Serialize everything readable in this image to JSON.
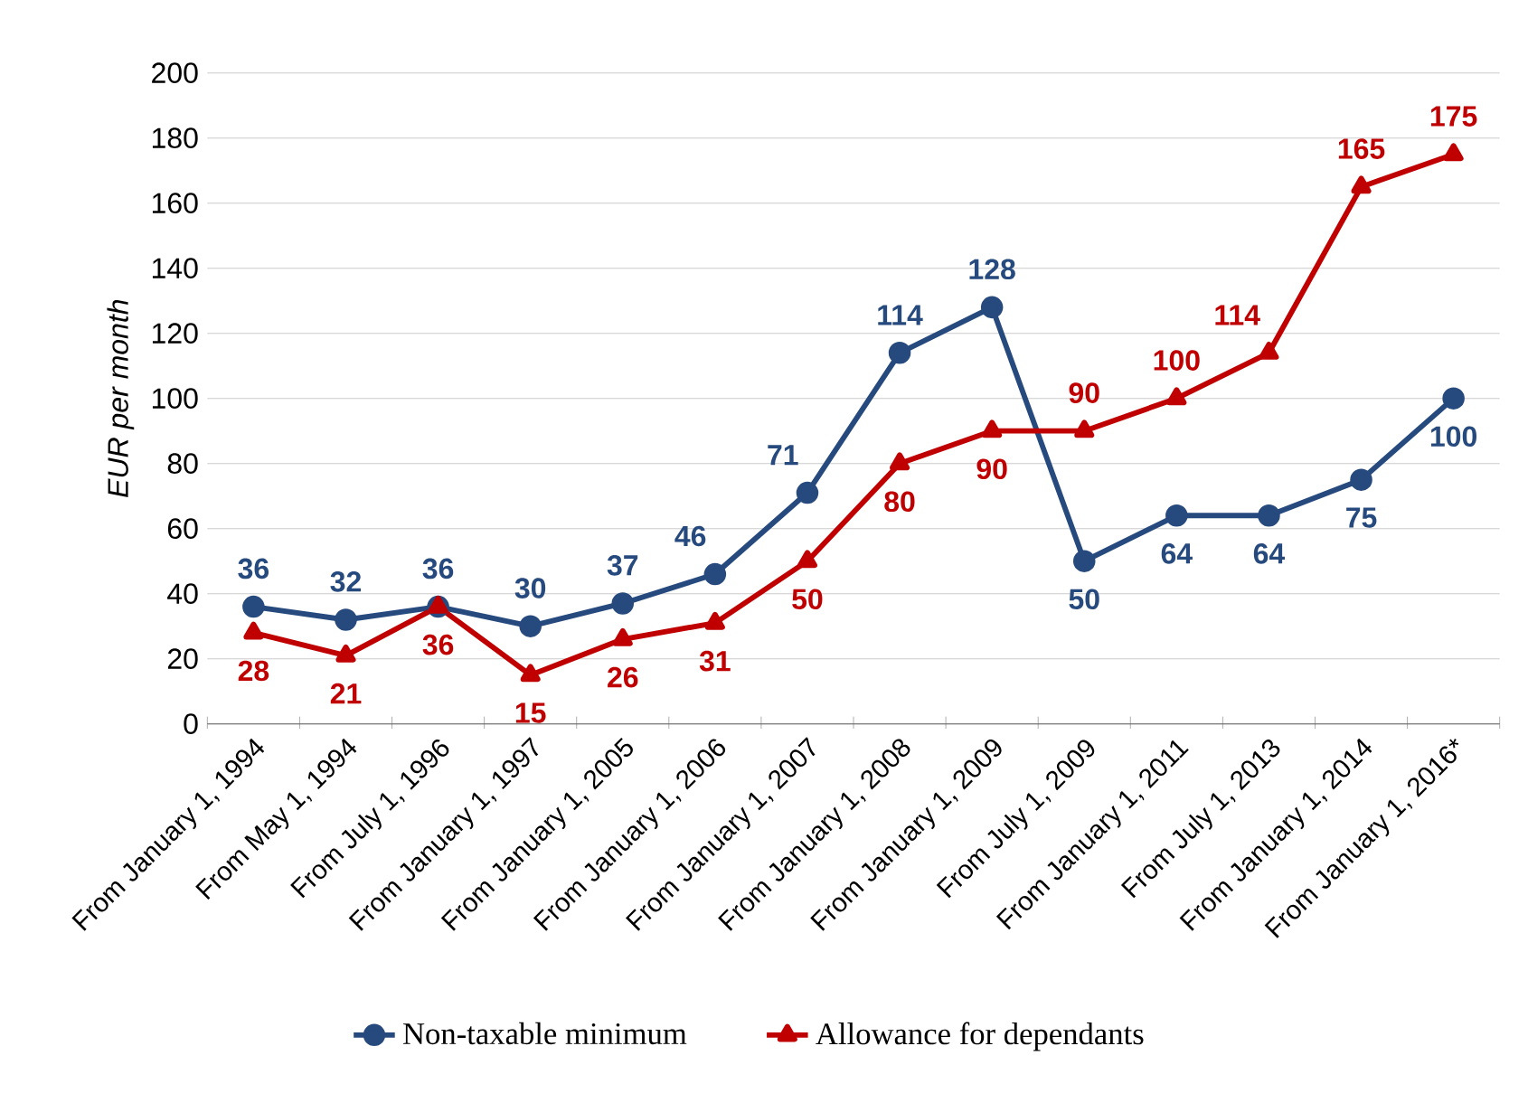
{
  "chart_data": {
    "type": "line",
    "ylabel": "EUR per month",
    "categories": [
      "From January 1, 1994",
      "From May 1, 1994",
      "From July 1, 1996",
      "From January 1, 1997",
      "From January 1, 2005",
      "From January 1, 2006",
      "From January 1, 2007",
      "From January 1, 2008",
      "From January 1, 2009",
      "From July 1, 2009",
      "From January 1, 2011",
      "From July 1, 2013",
      "From January 1, 2014",
      "From January 1, 2016*"
    ],
    "series": [
      {
        "name": "Non-taxable minimum",
        "color": "#264a7e",
        "marker": "circle",
        "values": [
          36,
          32,
          36,
          30,
          37,
          46,
          71,
          114,
          128,
          50,
          64,
          64,
          75,
          100
        ]
      },
      {
        "name": "Allowance for dependants",
        "color": "#c00000",
        "marker": "triangle",
        "values": [
          28,
          21,
          36,
          15,
          26,
          31,
          50,
          80,
          90,
          90,
          100,
          114,
          165,
          175
        ]
      }
    ],
    "ylim": [
      0,
      200
    ],
    "yticks": [
      0,
      20,
      40,
      60,
      80,
      100,
      120,
      140,
      160,
      180,
      200
    ],
    "grid": "y",
    "legend": "bottom",
    "line_style": "solid",
    "data_labels": true
  }
}
